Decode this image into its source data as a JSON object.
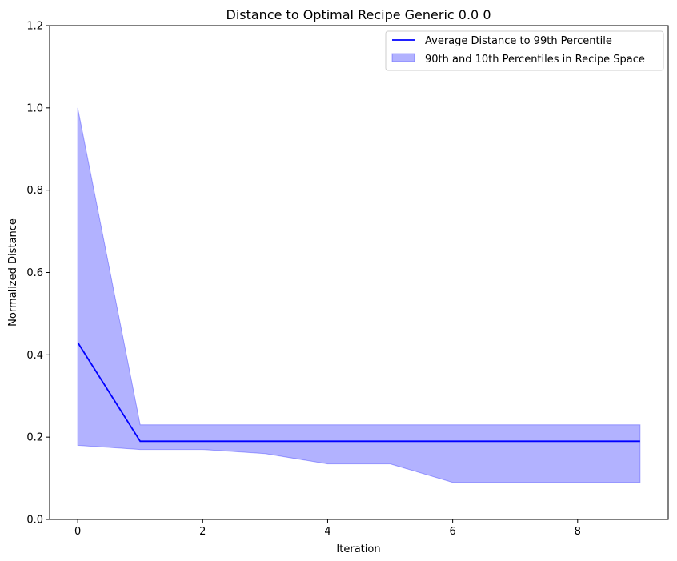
{
  "chart_data": {
    "type": "line",
    "title": "Distance to Optimal Recipe Generic 0.0 0",
    "xlabel": "Iteration",
    "ylabel": "Normalized Distance",
    "xlim": [
      -0.45,
      9.45
    ],
    "ylim": [
      0,
      1.2
    ],
    "xticks": [
      0,
      2,
      4,
      6,
      8
    ],
    "yticks": [
      0.0,
      0.2,
      0.4,
      0.6,
      0.8,
      1.0,
      1.2
    ],
    "x": [
      0,
      1,
      2,
      3,
      4,
      5,
      6,
      7,
      8,
      9
    ],
    "series": [
      {
        "name": "Average Distance to 99th Percentile",
        "kind": "line",
        "color": "#0000ff",
        "values": [
          0.43,
          0.19,
          0.19,
          0.19,
          0.19,
          0.19,
          0.19,
          0.19,
          0.19,
          0.19
        ]
      },
      {
        "name": "90th and 10th Percentiles in Recipe Space",
        "kind": "band",
        "color": "#0000ff",
        "upper": [
          1.0,
          0.23,
          0.23,
          0.23,
          0.23,
          0.23,
          0.23,
          0.23,
          0.23,
          0.23
        ],
        "lower": [
          0.18,
          0.17,
          0.17,
          0.16,
          0.135,
          0.135,
          0.09,
          0.09,
          0.09,
          0.09
        ]
      }
    ],
    "grid": false,
    "legend": "top-right"
  }
}
